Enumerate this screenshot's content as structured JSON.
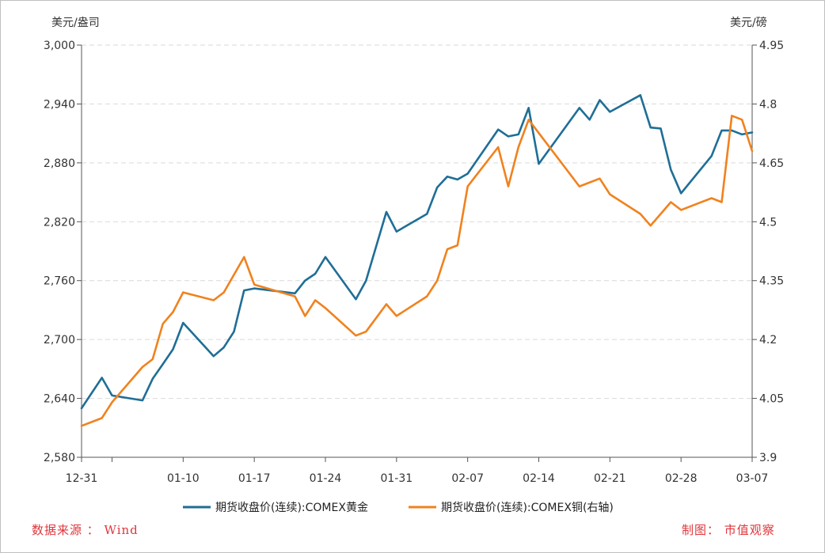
{
  "chart_data": {
    "type": "line",
    "left_unit": "美元/盎司",
    "right_unit": "美元/磅",
    "left_axis": {
      "min": 2580,
      "max": 3000,
      "ticks": [
        "2,580",
        "2,640",
        "2,700",
        "2,760",
        "2,820",
        "2,880",
        "2,940",
        "3,000"
      ],
      "tick_values": [
        2580,
        2640,
        2700,
        2760,
        2820,
        2880,
        2940,
        3000
      ]
    },
    "right_axis": {
      "min": 3.9,
      "max": 4.95,
      "ticks": [
        "3.9",
        "4.05",
        "4.2",
        "4.35",
        "4.5",
        "4.65",
        "4.8",
        "4.95"
      ],
      "tick_values": [
        3.9,
        4.05,
        4.2,
        4.35,
        4.5,
        4.65,
        4.8,
        4.95
      ]
    },
    "x_axis": {
      "start": "2024-12-31",
      "end": "2025-03-07",
      "tick_labels": [
        "12-31",
        "01-10",
        "01-17",
        "01-24",
        "01-31",
        "02-07",
        "02-14",
        "02-21",
        "02-28",
        "03-07"
      ],
      "tick_dates": [
        "2024-12-31",
        "2025-01-10",
        "2025-01-17",
        "2025-01-24",
        "2025-01-31",
        "2025-02-07",
        "2025-02-14",
        "2025-02-21",
        "2025-02-28",
        "2025-03-07"
      ]
    },
    "grid": "horizontal dashed",
    "legend_position": "bottom",
    "series": [
      {
        "name": "期货收盘价(连续):COMEX黄金",
        "axis": "left",
        "color": "#1f6e96",
        "points": [
          [
            "2024-12-31",
            2630
          ],
          [
            "2025-01-02",
            2661
          ],
          [
            "2025-01-03",
            2643
          ],
          [
            "2025-01-06",
            2638
          ],
          [
            "2025-01-07",
            2660
          ],
          [
            "2025-01-08",
            2675
          ],
          [
            "2025-01-09",
            2690
          ],
          [
            "2025-01-10",
            2717
          ],
          [
            "2025-01-13",
            2683
          ],
          [
            "2025-01-14",
            2692
          ],
          [
            "2025-01-15",
            2708
          ],
          [
            "2025-01-16",
            2750
          ],
          [
            "2025-01-17",
            2752
          ],
          [
            "2025-01-21",
            2747
          ],
          [
            "2025-01-22",
            2760
          ],
          [
            "2025-01-23",
            2767
          ],
          [
            "2025-01-24",
            2784
          ],
          [
            "2025-01-27",
            2741
          ],
          [
            "2025-01-28",
            2760
          ],
          [
            "2025-01-30",
            2830
          ],
          [
            "2025-01-31",
            2810
          ],
          [
            "2025-02-03",
            2828
          ],
          [
            "2025-02-04",
            2855
          ],
          [
            "2025-02-05",
            2866
          ],
          [
            "2025-02-06",
            2863
          ],
          [
            "2025-02-07",
            2869
          ],
          [
            "2025-02-10",
            2914
          ],
          [
            "2025-02-11",
            2907
          ],
          [
            "2025-02-12",
            2909
          ],
          [
            "2025-02-13",
            2936
          ],
          [
            "2025-02-14",
            2879
          ],
          [
            "2025-02-18",
            2936
          ],
          [
            "2025-02-19",
            2924
          ],
          [
            "2025-02-20",
            2944
          ],
          [
            "2025-02-21",
            2932
          ],
          [
            "2025-02-24",
            2949
          ],
          [
            "2025-02-25",
            2916
          ],
          [
            "2025-02-26",
            2915
          ],
          [
            "2025-02-27",
            2873
          ],
          [
            "2025-02-28",
            2849
          ],
          [
            "2025-03-03",
            2887
          ],
          [
            "2025-03-04",
            2913
          ],
          [
            "2025-03-05",
            2913
          ],
          [
            "2025-03-06",
            2909
          ],
          [
            "2025-03-07",
            2911
          ]
        ]
      },
      {
        "name": "期货收盘价(连续):COMEX铜(右轴)",
        "axis": "right",
        "color": "#f0821e",
        "points": [
          [
            "2024-12-31",
            3.98
          ],
          [
            "2025-01-02",
            4.0
          ],
          [
            "2025-01-03",
            4.04
          ],
          [
            "2025-01-06",
            4.13
          ],
          [
            "2025-01-07",
            4.15
          ],
          [
            "2025-01-08",
            4.24
          ],
          [
            "2025-01-09",
            4.27
          ],
          [
            "2025-01-10",
            4.32
          ],
          [
            "2025-01-13",
            4.3
          ],
          [
            "2025-01-14",
            4.32
          ],
          [
            "2025-01-16",
            4.41
          ],
          [
            "2025-01-17",
            4.34
          ],
          [
            "2025-01-21",
            4.31
          ],
          [
            "2025-01-22",
            4.26
          ],
          [
            "2025-01-23",
            4.3
          ],
          [
            "2025-01-24",
            4.28
          ],
          [
            "2025-01-27",
            4.21
          ],
          [
            "2025-01-28",
            4.22
          ],
          [
            "2025-01-30",
            4.29
          ],
          [
            "2025-01-31",
            4.26
          ],
          [
            "2025-02-03",
            4.31
          ],
          [
            "2025-02-04",
            4.35
          ],
          [
            "2025-02-05",
            4.43
          ],
          [
            "2025-02-06",
            4.44
          ],
          [
            "2025-02-07",
            4.59
          ],
          [
            "2025-02-10",
            4.69
          ],
          [
            "2025-02-11",
            4.59
          ],
          [
            "2025-02-12",
            4.69
          ],
          [
            "2025-02-13",
            4.76
          ],
          [
            "2025-02-18",
            4.59
          ],
          [
            "2025-02-20",
            4.61
          ],
          [
            "2025-02-21",
            4.57
          ],
          [
            "2025-02-24",
            4.52
          ],
          [
            "2025-02-25",
            4.49
          ],
          [
            "2025-02-27",
            4.55
          ],
          [
            "2025-02-28",
            4.53
          ],
          [
            "2025-03-03",
            4.56
          ],
          [
            "2025-03-04",
            4.55
          ],
          [
            "2025-03-05",
            4.77
          ],
          [
            "2025-03-06",
            4.76
          ],
          [
            "2025-03-07",
            4.68
          ]
        ]
      }
    ]
  },
  "footer": {
    "source": "数据来源 ： Wind",
    "credit": "制图： 市值观察"
  }
}
